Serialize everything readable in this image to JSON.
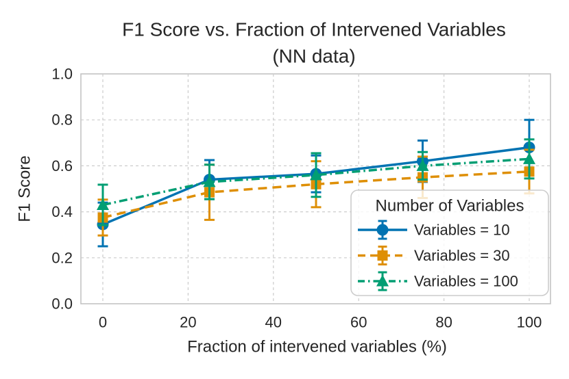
{
  "chart_data": {
    "type": "line",
    "title": "F1 Score vs. Fraction of Intervened Variables (NN data)",
    "title_lines": [
      "F1 Score vs. Fraction of Intervened Variables",
      "(NN data)"
    ],
    "xlabel": "Fraction of intervened variables (%)",
    "ylabel": "F1 Score",
    "x": [
      0,
      25,
      50,
      75,
      100
    ],
    "xlim": [
      -5,
      105
    ],
    "ylim": [
      0.0,
      1.0
    ],
    "xticks": [
      0,
      20,
      40,
      60,
      80,
      100
    ],
    "xtick_labels": [
      "0",
      "20",
      "40",
      "60",
      "80",
      "100"
    ],
    "yticks": [
      0.0,
      0.2,
      0.4,
      0.6,
      0.8,
      1.0
    ],
    "ytick_labels": [
      "0.0",
      "0.2",
      "0.4",
      "0.6",
      "0.8",
      "1.0"
    ],
    "grid": "dashed-both-axes",
    "legend": {
      "title": "Number of Variables",
      "position": "lower right"
    },
    "series": [
      {
        "name": "Variables = 10",
        "color": "#0173b2",
        "linestyle": "solid",
        "marker": "circle",
        "y": [
          0.345,
          0.54,
          0.565,
          0.62,
          0.68
        ],
        "yerr": [
          0.095,
          0.085,
          0.08,
          0.09,
          0.12
        ]
      },
      {
        "name": "Variables = 30",
        "color": "#de8f05",
        "linestyle": "dashed",
        "marker": "square",
        "y": [
          0.375,
          0.485,
          0.52,
          0.55,
          0.575
        ],
        "yerr": [
          0.078,
          0.12,
          0.1,
          0.09,
          0.095
        ]
      },
      {
        "name": "Variables = 100",
        "color": "#029e73",
        "linestyle": "dashdot",
        "marker": "triangle",
        "y": [
          0.43,
          0.53,
          0.56,
          0.6,
          0.63
        ],
        "yerr": [
          0.088,
          0.075,
          0.095,
          0.06,
          0.085
        ]
      }
    ],
    "colors": {
      "grid": "#cccccc",
      "spine": "#c3c3c3",
      "text": "#262626",
      "legend_border": "#cccccc",
      "legend_bg": "rgba(255,255,255,0.8)"
    }
  }
}
